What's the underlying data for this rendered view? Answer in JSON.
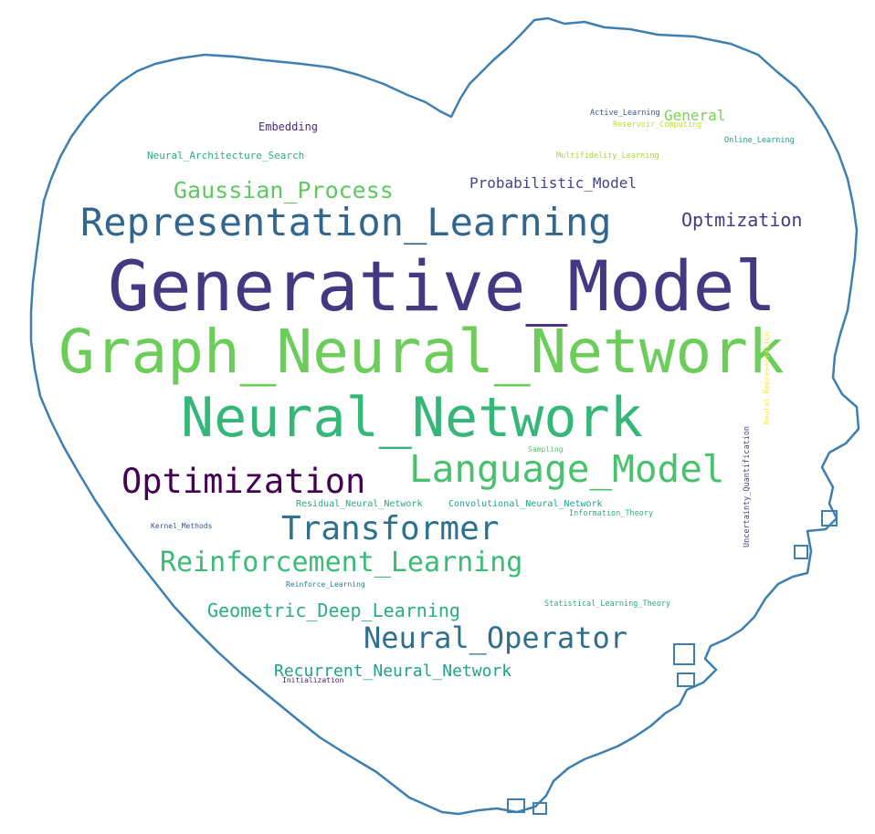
{
  "outline_color": "#3d7fb0",
  "words": [
    {
      "text": "Generative_Model",
      "color": "#453781"
    },
    {
      "text": "Graph_Neural_Network",
      "color": "#6ccd5a"
    },
    {
      "text": "Neural_Network",
      "color": "#35b779"
    },
    {
      "text": "Representation_Learning",
      "color": "#31668e"
    },
    {
      "text": "Language_Model",
      "color": "#4ac16d"
    },
    {
      "text": "Optimization",
      "color": "#440154"
    },
    {
      "text": "Transformer",
      "color": "#2c728e"
    },
    {
      "text": "Reinforcement_Learning",
      "color": "#3bbb75"
    },
    {
      "text": "Neural_Operator",
      "color": "#2e6e8e"
    },
    {
      "text": "Gaussian_Process",
      "color": "#5ec962"
    },
    {
      "text": "Geometric_Deep_Learning",
      "color": "#29af7f"
    },
    {
      "text": "Recurrent_Neural_Network",
      "color": "#20a386"
    },
    {
      "text": "Optmization",
      "color": "#443a83"
    },
    {
      "text": "Probabilistic_Model",
      "color": "#414487"
    },
    {
      "text": "General",
      "color": "#7ad151"
    },
    {
      "text": "Embedding",
      "color": "#472d7b"
    },
    {
      "text": "Neural_Architecture_Search",
      "color": "#29af7f"
    },
    {
      "text": "Active_Learning",
      "color": "#3b528b"
    },
    {
      "text": "Reservoir_Computing",
      "color": "#b8de29"
    },
    {
      "text": "Online_Learning",
      "color": "#1f9e89"
    },
    {
      "text": "Multifidelity_Learning",
      "color": "#a5db36"
    },
    {
      "text": "Residual_Neural_Network",
      "color": "#22a884"
    },
    {
      "text": "Convolutional_Neural_Network",
      "color": "#1fa188"
    },
    {
      "text": "Information_Theory",
      "color": "#2eb37c"
    },
    {
      "text": "Sampling",
      "color": "#52c569"
    },
    {
      "text": "Kernel_Methods",
      "color": "#3b528b"
    },
    {
      "text": "Reinforce_Learning",
      "color": "#2a788e"
    },
    {
      "text": "Statistical_Learning_Theory",
      "color": "#27ad81"
    },
    {
      "text": "Initialization",
      "color": "#481a6c"
    },
    {
      "text": "Neural_Representation",
      "color": "#fde725"
    },
    {
      "text": "Uncertainty_Quantification",
      "color": "#414487"
    }
  ]
}
